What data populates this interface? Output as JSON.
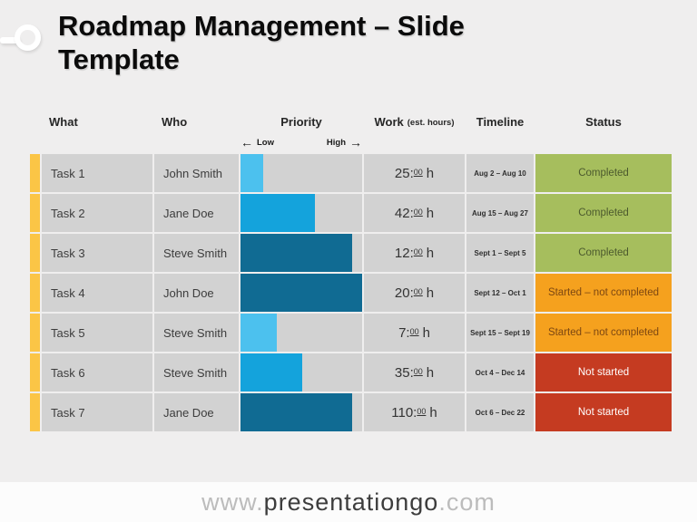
{
  "title": {
    "line1": "Roadmap Management – Slide",
    "line2": "Template"
  },
  "table": {
    "headers": {
      "what": "What",
      "who": "Who",
      "priority": "Priority",
      "work": "Work",
      "work_note": "(est. hours)",
      "timeline": "Timeline",
      "status": "Status"
    },
    "priority_scale": {
      "left_arrow": "←",
      "low_label": "Low",
      "high_label": "High",
      "right_arrow": "→"
    },
    "rows": [
      {
        "what": "Task 1",
        "who": "John Smith",
        "priority_pct": 19,
        "priority_level": "low",
        "work_hours": "25:",
        "work_sup": "00",
        "work_unit": "h",
        "timeline": "Aug 2 – Aug 10",
        "status": "Completed",
        "status_type": "completed"
      },
      {
        "what": "Task 2",
        "who": "Jane Doe",
        "priority_pct": 61,
        "priority_level": "medium",
        "work_hours": "42:",
        "work_sup": "00",
        "work_unit": "h",
        "timeline": "Aug 15 – Aug 27",
        "status": "Completed",
        "status_type": "completed"
      },
      {
        "what": "Task 3",
        "who": "Steve Smith",
        "priority_pct": 92,
        "priority_level": "high",
        "work_hours": "12:",
        "work_sup": "00",
        "work_unit": "h",
        "timeline": "Sept 1 – Sept 5",
        "status": "Completed",
        "status_type": "completed"
      },
      {
        "what": "Task 4",
        "who": "John Doe",
        "priority_pct": 102,
        "priority_level": "high",
        "work_hours": "20:",
        "work_sup": "00",
        "work_unit": "h",
        "timeline": "Sept 12 – Oct 1",
        "status": "Started – not completed",
        "status_type": "started"
      },
      {
        "what": "Task 5",
        "who": "Steve Smith",
        "priority_pct": 30,
        "priority_level": "low",
        "work_hours": "7:",
        "work_sup": "00",
        "work_unit": "h",
        "timeline": "Sept 15 – Sept 19",
        "status": "Started – not completed",
        "status_type": "started"
      },
      {
        "what": "Task 6",
        "who": "Steve Smith",
        "priority_pct": 51,
        "priority_level": "medium",
        "work_hours": "35:",
        "work_sup": "00",
        "work_unit": "h",
        "timeline": "Oct 4 – Dec 14",
        "status": "Not started",
        "status_type": "not_started"
      },
      {
        "what": "Task 7",
        "who": "Jane Doe",
        "priority_pct": 92,
        "priority_level": "high",
        "work_hours": "110:",
        "work_sup": "00",
        "work_unit": "h",
        "timeline": "Oct 6 – Dec 22",
        "status": "Not started",
        "status_type": "not_started"
      }
    ]
  },
  "colors": {
    "accent_strip": "#FBC546",
    "cell_bg": "#D2D2D2",
    "priority": {
      "low": "#4CC1EE",
      "medium": "#14A3DC",
      "high": "#106B93"
    },
    "status": {
      "completed": {
        "bg": "#A6BE5D",
        "text": "#4C5A2E"
      },
      "started": {
        "bg": "#F5A11E",
        "text": "#7C4712"
      },
      "not_started": {
        "bg": "#C53B21",
        "text": "#FFFFFF"
      }
    }
  },
  "footer": {
    "prefix": "www.",
    "brand": "presentationgo",
    "suffix": ".com"
  }
}
